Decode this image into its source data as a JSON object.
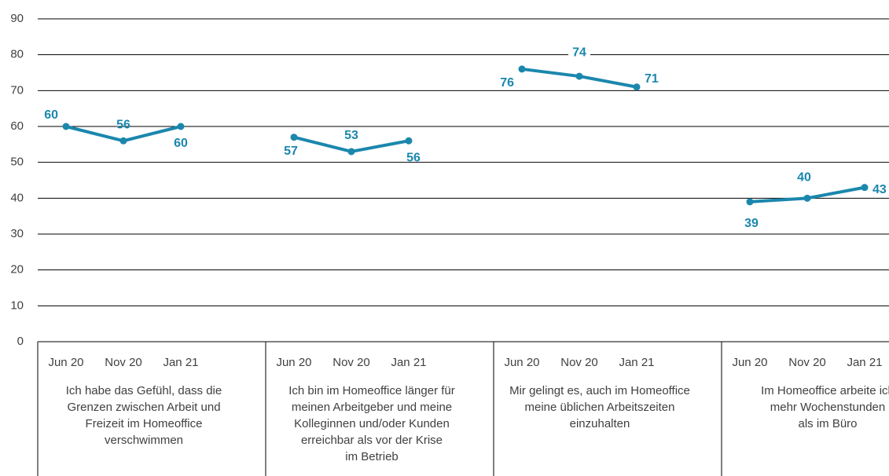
{
  "chart_data": {
    "type": "line",
    "color": "#1b87ad",
    "ylim": [
      0,
      90
    ],
    "yticks": [
      0,
      10,
      20,
      30,
      40,
      50,
      60,
      70,
      80,
      90
    ],
    "grid": true,
    "groups": [
      {
        "label": [
          "Ich habe das Gefühl, dass die",
          "Grenzen zwischen Arbeit und",
          "Freizeit im Homeoffice",
          "verschwimmen"
        ],
        "categories": [
          "Jun 20",
          "Nov 20",
          "Jan 21"
        ],
        "values": [
          60,
          56,
          60
        ]
      },
      {
        "label": [
          "Ich bin im Homeoffice länger für",
          "meinen Arbeitgeber und meine",
          "Kolleginnen und/oder Kunden",
          "erreichbar als vor der Krise",
          "im Betrieb"
        ],
        "categories": [
          "Jun 20",
          "Nov 20",
          "Jan 21"
        ],
        "values": [
          57,
          53,
          56
        ]
      },
      {
        "label": [
          "Mir gelingt es, auch im Homeoffice",
          "meine üblichen Arbeitszeiten",
          "einzuhalten"
        ],
        "categories": [
          "Jun 20",
          "Nov 20",
          "Jan 21"
        ],
        "values": [
          76,
          74,
          71
        ]
      },
      {
        "label": [
          "Im Homeoffice arbeite ich",
          "mehr Wochenstunden",
          "als im Büro"
        ],
        "categories": [
          "Jun 20",
          "Nov 20",
          "Jan 21"
        ],
        "values": [
          39,
          40,
          43
        ]
      }
    ]
  }
}
